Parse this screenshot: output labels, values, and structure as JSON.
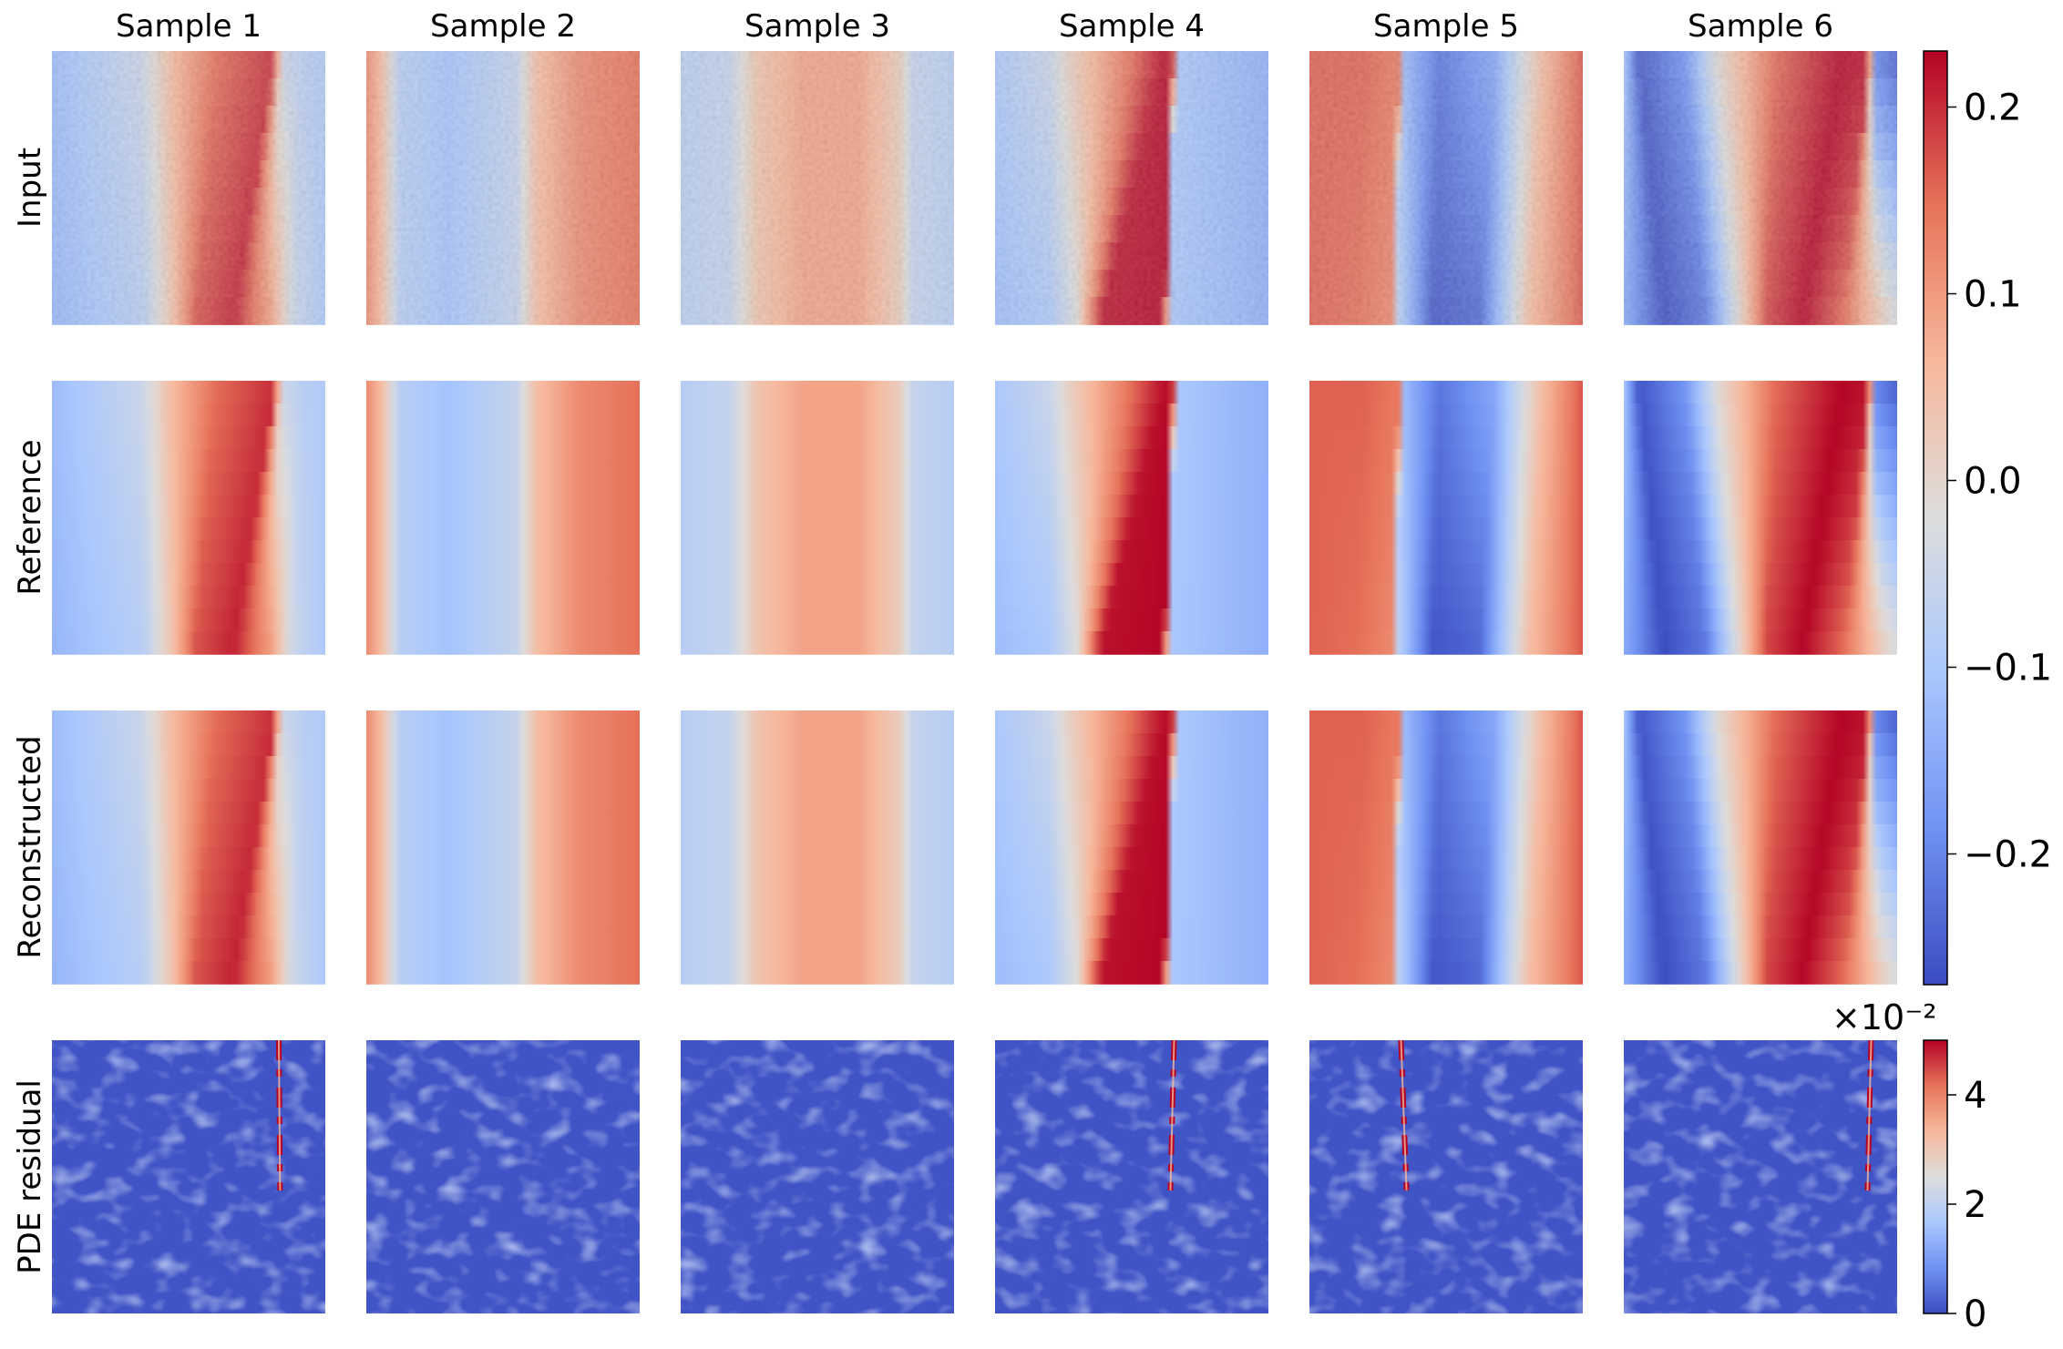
{
  "chart_data": {
    "type": "heatmap",
    "title": "",
    "columns": [
      "Sample 1",
      "Sample 2",
      "Sample 3",
      "Sample 4",
      "Sample 5",
      "Sample 6"
    ],
    "rows": [
      "Input",
      "Reference",
      "Reconstructed",
      "PDE residual"
    ],
    "grid": false,
    "colormap": "coolwarm",
    "colormap_stops": [
      "#3b4cc0",
      "#6f92f3",
      "#aac7fd",
      "#dddddd",
      "#f7b89c",
      "#e7745b",
      "#b40426"
    ],
    "colorbars": [
      {
        "applies_to": [
          "Input",
          "Reference",
          "Reconstructed"
        ],
        "range": [
          -0.27,
          0.23
        ],
        "ticks": [
          -0.2,
          -0.1,
          0.0,
          0.1,
          0.2
        ],
        "tick_labels": [
          "−0.2",
          "−0.1",
          "0.0",
          "0.1",
          "0.2"
        ]
      },
      {
        "applies_to": [
          "PDE residual"
        ],
        "range": [
          0,
          5
        ],
        "ticks": [
          0,
          2,
          4
        ],
        "tick_labels": [
          "0",
          "2",
          "4"
        ],
        "multiplier_label": "×10⁻²"
      }
    ],
    "samples": [
      {
        "name": "Sample 1",
        "description": "positive band (peak ~0.2) between negative regions, tilting right toward the top",
        "field_min": -0.15,
        "field_max": 0.21,
        "residual_max": 5
      },
      {
        "name": "Sample 2",
        "description": "narrow positive strip on left edge, wide negative band, positive band on right",
        "field_min": -0.12,
        "field_max": 0.15,
        "residual_max": 2
      },
      {
        "name": "Sample 3",
        "description": "smooth mild positive bump in center, slightly negative on both sides",
        "field_min": -0.09,
        "field_max": 0.1,
        "residual_max": 2
      },
      {
        "name": "Sample 4",
        "description": "sharp shock: strong positive band ending abruptly into negative region on right",
        "field_min": -0.14,
        "field_max": 0.23,
        "residual_max": 5
      },
      {
        "name": "Sample 5",
        "description": "positive region on left, steep drop to strong negative band, positive again on right",
        "field_min": -0.27,
        "field_max": 0.18,
        "residual_max": 5
      },
      {
        "name": "Sample 6",
        "description": "alternating strong negative and positive bands with a shock near the right edge",
        "field_min": -0.27,
        "field_max": 0.23,
        "residual_max": 5
      }
    ]
  }
}
